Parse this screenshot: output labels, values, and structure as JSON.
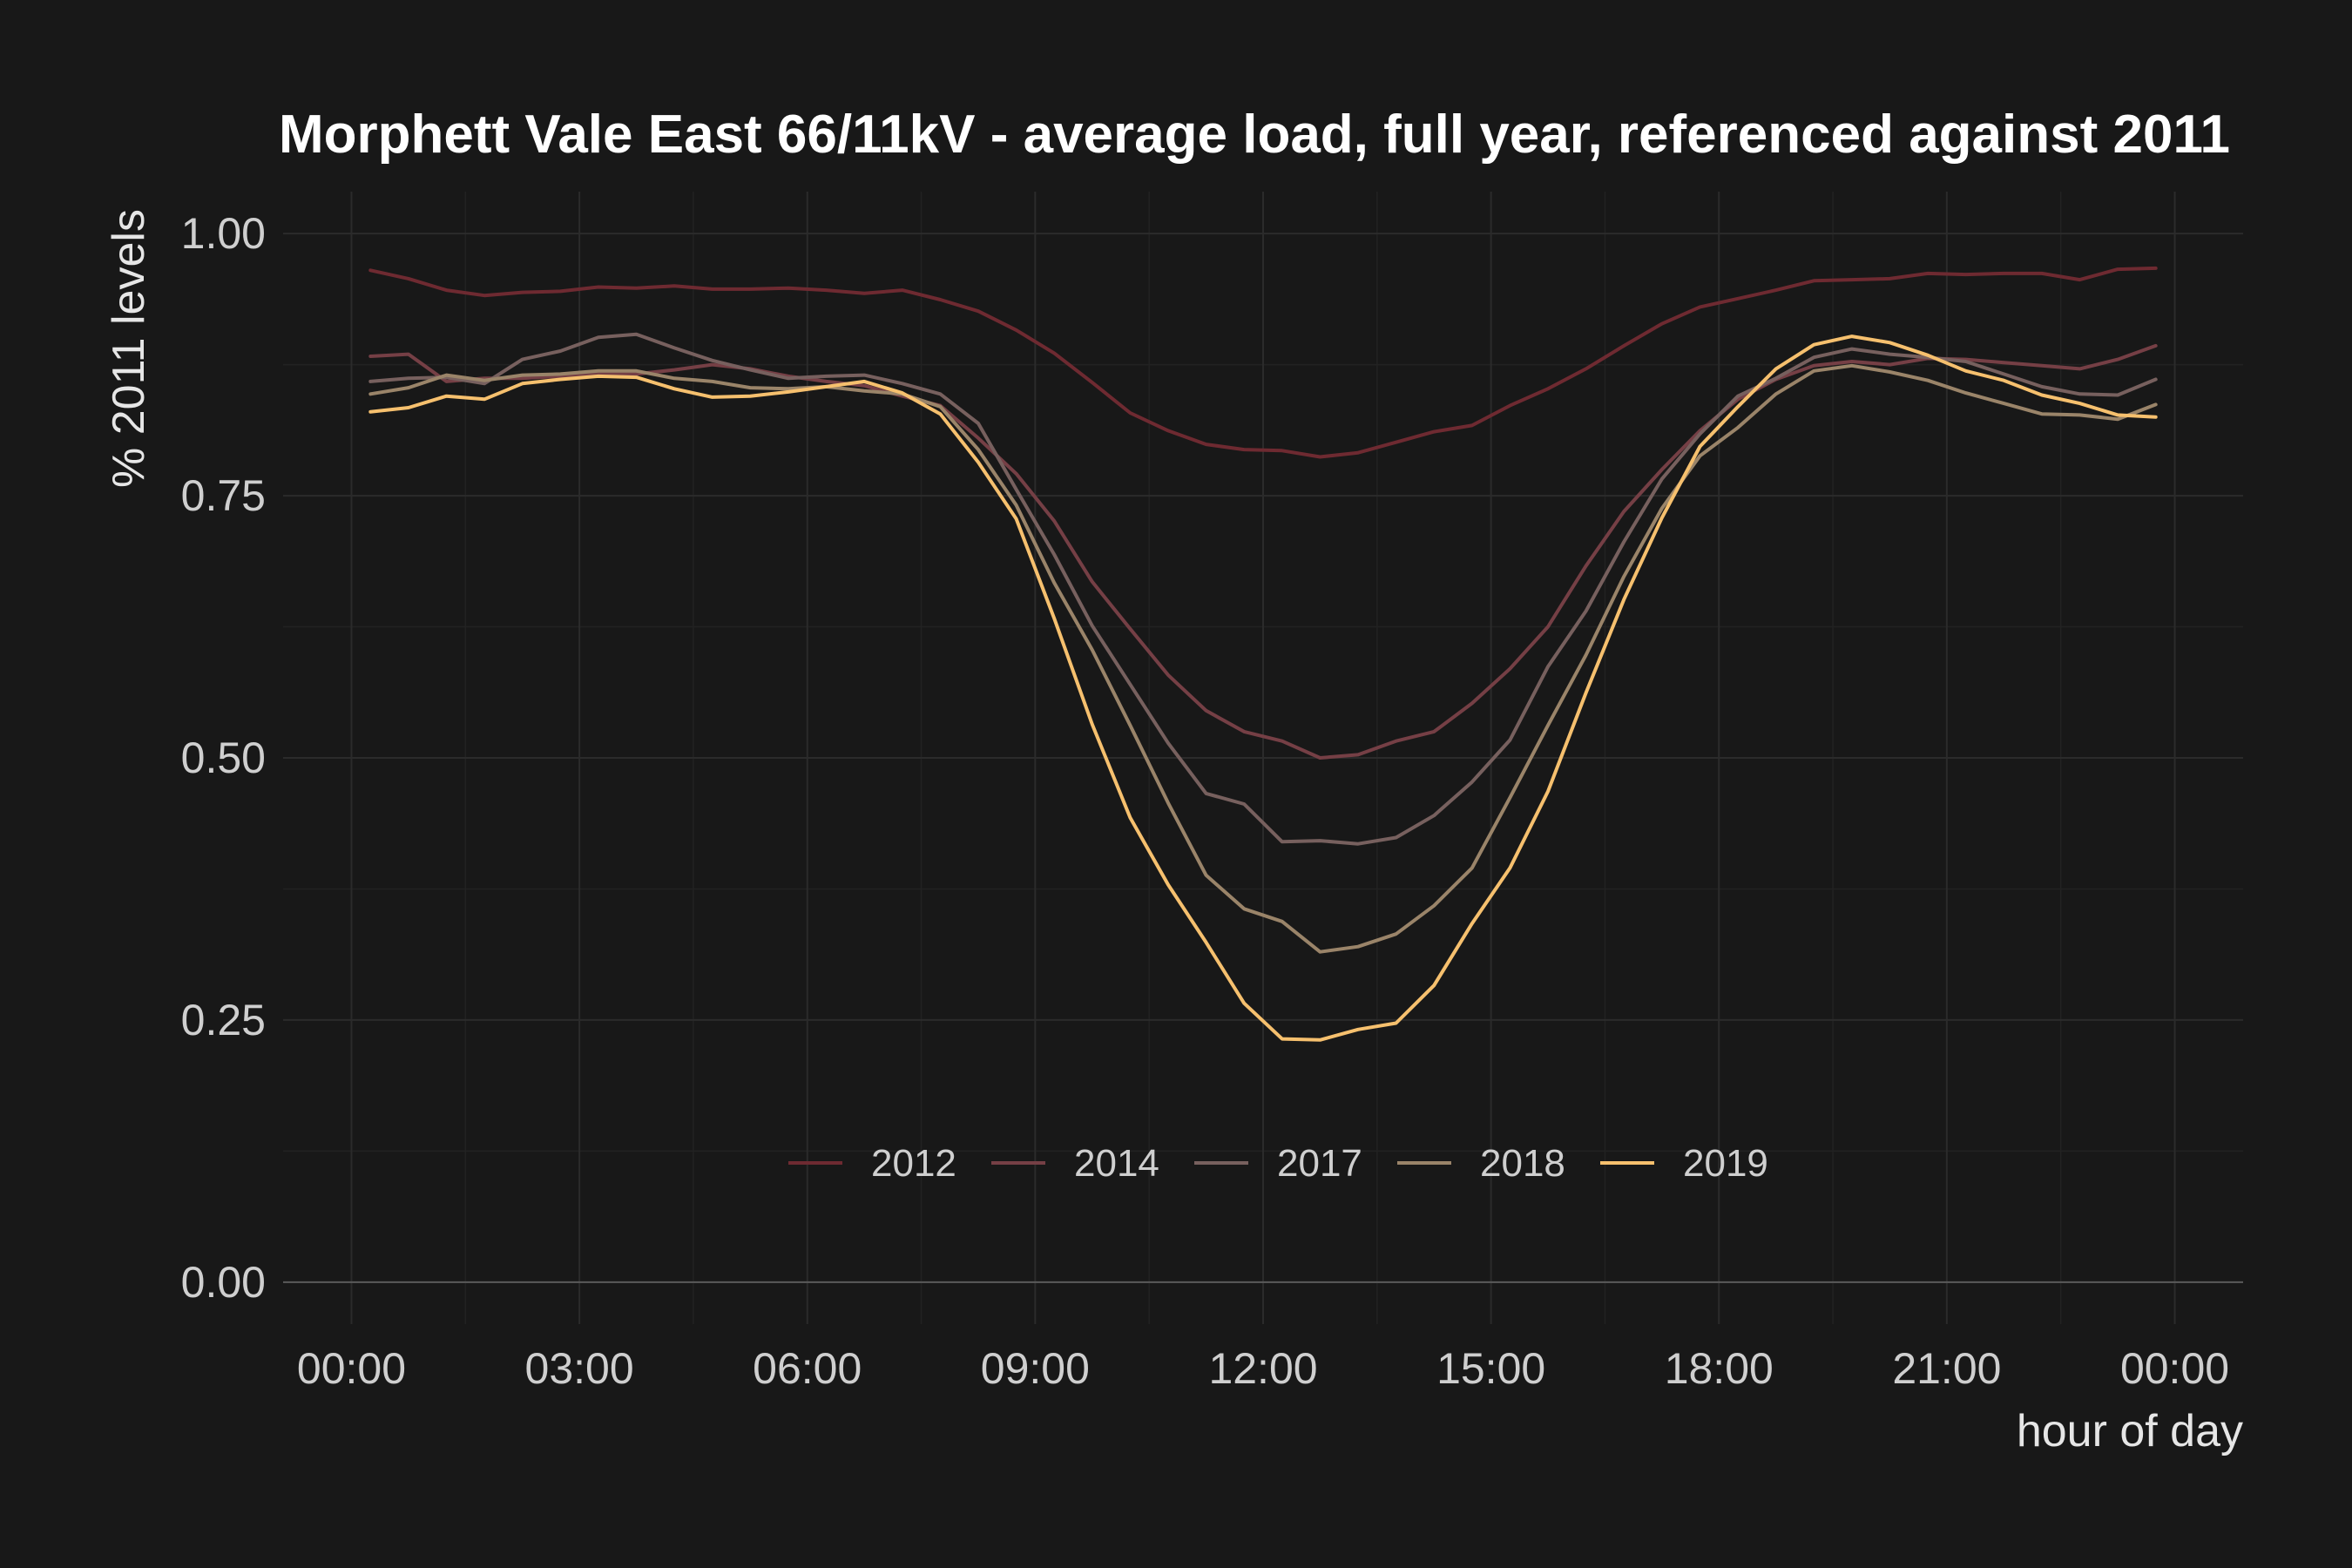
{
  "chart_data": {
    "type": "line",
    "title": "Morphett Vale East 66/11kV - average load, full year, referenced against 2011",
    "xlabel": "hour of day",
    "ylabel": "% 2011 levels",
    "x_unit": "hours",
    "xlim": [
      -0.9,
      24.9
    ],
    "ylim": [
      -0.04,
      1.04
    ],
    "x_ticks": [
      0,
      3,
      6,
      9,
      12,
      15,
      18,
      21,
      24
    ],
    "x_tick_labels": [
      "00:00",
      "03:00",
      "06:00",
      "09:00",
      "12:00",
      "15:00",
      "18:00",
      "21:00",
      "00:00"
    ],
    "y_ticks": [
      0,
      0.25,
      0.5,
      0.75,
      1.0
    ],
    "y_tick_labels": [
      "0.00",
      "0.25",
      "0.50",
      "0.75",
      "1.00"
    ],
    "grid": true,
    "legend_position": "bottom-center-inside",
    "x": [
      0.25,
      0.75,
      1.25,
      1.75,
      2.25,
      2.75,
      3.25,
      3.75,
      4.25,
      4.75,
      5.25,
      5.75,
      6.25,
      6.75,
      7.25,
      7.75,
      8.25,
      8.75,
      9.25,
      9.75,
      10.25,
      10.75,
      11.25,
      11.75,
      12.25,
      12.75,
      13.25,
      13.75,
      14.25,
      14.75,
      15.25,
      15.75,
      16.25,
      16.75,
      17.25,
      17.75,
      18.25,
      18.75,
      19.25,
      19.75,
      20.25,
      20.75,
      21.25,
      21.75,
      22.25,
      22.75,
      23.25,
      23.75
    ],
    "series": [
      {
        "name": "2012",
        "color": "#6e2a31",
        "values": [
          0.965,
          0.957,
          0.946,
          0.941,
          0.944,
          0.945,
          0.949,
          0.948,
          0.95,
          0.947,
          0.947,
          0.948,
          0.946,
          0.943,
          0.946,
          0.937,
          0.926,
          0.908,
          0.886,
          0.858,
          0.829,
          0.812,
          0.799,
          0.794,
          0.793,
          0.787,
          0.791,
          0.801,
          0.811,
          0.817,
          0.836,
          0.852,
          0.871,
          0.893,
          0.914,
          0.93,
          0.938,
          0.946,
          0.955,
          0.956,
          0.957,
          0.962,
          0.961,
          0.962,
          0.962,
          0.956,
          0.966,
          0.967
        ]
      },
      {
        "name": "2014",
        "color": "#753f45",
        "values": [
          0.883,
          0.885,
          0.859,
          0.862,
          0.862,
          0.864,
          0.867,
          0.866,
          0.87,
          0.875,
          0.871,
          0.864,
          0.859,
          0.855,
          0.845,
          0.836,
          0.805,
          0.771,
          0.726,
          0.668,
          0.623,
          0.579,
          0.545,
          0.525,
          0.516,
          0.5,
          0.503,
          0.516,
          0.525,
          0.552,
          0.585,
          0.625,
          0.683,
          0.735,
          0.775,
          0.812,
          0.842,
          0.861,
          0.874,
          0.878,
          0.875,
          0.881,
          0.88,
          0.877,
          0.874,
          0.871,
          0.88,
          0.893
        ]
      },
      {
        "name": "2017",
        "color": "#77605e",
        "values": [
          0.859,
          0.862,
          0.863,
          0.857,
          0.88,
          0.888,
          0.901,
          0.904,
          0.891,
          0.879,
          0.87,
          0.862,
          0.864,
          0.865,
          0.857,
          0.847,
          0.819,
          0.756,
          0.694,
          0.626,
          0.57,
          0.514,
          0.466,
          0.456,
          0.42,
          0.421,
          0.418,
          0.424,
          0.445,
          0.477,
          0.517,
          0.587,
          0.64,
          0.706,
          0.766,
          0.809,
          0.845,
          0.862,
          0.882,
          0.89,
          0.885,
          0.882,
          0.878,
          0.866,
          0.854,
          0.847,
          0.846,
          0.861
        ]
      },
      {
        "name": "2018",
        "color": "#9a8469",
        "values": [
          0.847,
          0.853,
          0.865,
          0.86,
          0.865,
          0.866,
          0.869,
          0.869,
          0.862,
          0.859,
          0.853,
          0.852,
          0.854,
          0.85,
          0.847,
          0.835,
          0.794,
          0.741,
          0.667,
          0.603,
          0.531,
          0.457,
          0.388,
          0.356,
          0.344,
          0.315,
          0.32,
          0.332,
          0.359,
          0.395,
          0.462,
          0.531,
          0.598,
          0.673,
          0.738,
          0.788,
          0.815,
          0.847,
          0.869,
          0.874,
          0.868,
          0.86,
          0.848,
          0.838,
          0.828,
          0.827,
          0.823,
          0.837
        ]
      },
      {
        "name": "2019",
        "color": "#f6c06e",
        "values": [
          0.83,
          0.834,
          0.845,
          0.842,
          0.857,
          0.861,
          0.864,
          0.863,
          0.852,
          0.844,
          0.845,
          0.849,
          0.854,
          0.859,
          0.848,
          0.828,
          0.782,
          0.728,
          0.633,
          0.532,
          0.443,
          0.379,
          0.324,
          0.266,
          0.232,
          0.231,
          0.241,
          0.247,
          0.283,
          0.342,
          0.395,
          0.468,
          0.562,
          0.651,
          0.729,
          0.797,
          0.835,
          0.871,
          0.894,
          0.902,
          0.896,
          0.884,
          0.869,
          0.86,
          0.846,
          0.838,
          0.827,
          0.825
        ]
      }
    ]
  }
}
